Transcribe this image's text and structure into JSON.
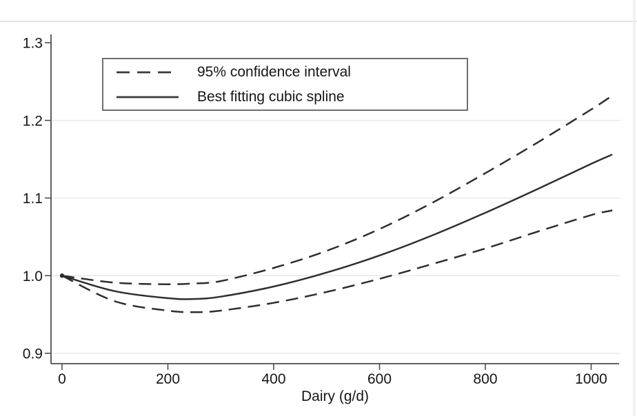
{
  "chart_data": {
    "type": "line",
    "title": "",
    "xlabel": "Dairy (g/d)",
    "ylabel": "",
    "x_ticks": [
      0,
      200,
      400,
      600,
      800,
      1000
    ],
    "y_ticks": [
      {
        "value": 0.9,
        "label": "0.9"
      },
      {
        "value": 1.0,
        "label": "1.0"
      },
      {
        "value": 1.1,
        "label": "1.1"
      },
      {
        "value": 1.2,
        "label": "1.2"
      },
      {
        "value": 1.3,
        "label": "1.3"
      }
    ],
    "xlim": [
      -21,
      1051
    ],
    "ylim": [
      0.887,
      1.324
    ],
    "grid": "horizontal-only",
    "legend_position": "upper-left-inside",
    "line_color": "#2e2e2e",
    "x": [
      0,
      100,
      200,
      250,
      300,
      400,
      500,
      600,
      700,
      800,
      900,
      1000,
      1040
    ],
    "series": [
      {
        "name": "95% CI upper bound",
        "style": "dashed",
        "values": [
          1.0,
          0.991,
          0.989,
          0.99,
          0.993,
          1.01,
          1.032,
          1.06,
          1.094,
          1.132,
          1.172,
          1.214,
          1.232
        ]
      },
      {
        "name": "Best fitting cubic spline",
        "style": "solid",
        "values": [
          1.0,
          0.98,
          0.971,
          0.97,
          0.973,
          0.986,
          1.004,
          1.026,
          1.052,
          1.081,
          1.112,
          1.144,
          1.156
        ]
      },
      {
        "name": "95% CI lower bound",
        "style": "dashed",
        "values": [
          1.0,
          0.967,
          0.955,
          0.953,
          0.955,
          0.965,
          0.979,
          0.996,
          1.015,
          1.035,
          1.057,
          1.078,
          1.084
        ]
      }
    ]
  },
  "legend": {
    "items": [
      {
        "label": "95% confidence interval",
        "style": "dashed"
      },
      {
        "label": "Best fitting cubic spline",
        "style": "solid"
      }
    ]
  }
}
